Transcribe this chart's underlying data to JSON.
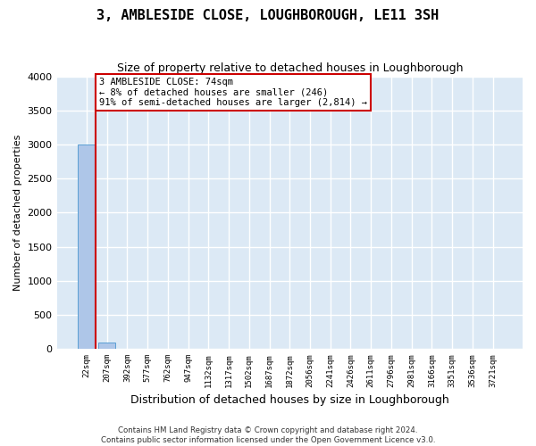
{
  "title": "3, AMBLESIDE CLOSE, LOUGHBOROUGH, LE11 3SH",
  "subtitle": "Size of property relative to detached houses in Loughborough",
  "xlabel": "Distribution of detached houses by size in Loughborough",
  "ylabel": "Number of detached properties",
  "bar_values": [
    3000,
    100,
    0,
    0,
    0,
    0,
    0,
    0,
    0,
    0,
    0,
    0,
    0,
    0,
    0,
    0,
    0,
    0,
    0,
    0,
    0
  ],
  "bar_labels": [
    "22sqm",
    "207sqm",
    "392sqm",
    "577sqm",
    "762sqm",
    "947sqm",
    "1132sqm",
    "1317sqm",
    "1502sqm",
    "1687sqm",
    "1872sqm",
    "2056sqm",
    "2241sqm",
    "2426sqm",
    "2611sqm",
    "2796sqm",
    "2981sqm",
    "3166sqm",
    "3351sqm",
    "3536sqm",
    "3721sqm"
  ],
  "bar_color": "#aec6e8",
  "bar_edge_color": "#5a9fd4",
  "background_color": "#dce9f5",
  "grid_color": "#ffffff",
  "ylim": [
    0,
    4000
  ],
  "yticks": [
    0,
    500,
    1000,
    1500,
    2000,
    2500,
    3000,
    3500,
    4000
  ],
  "annotation_text": "3 AMBLESIDE CLOSE: 74sqm\n← 8% of detached houses are smaller (246)\n91% of semi-detached houses are larger (2,814) →",
  "annotation_box_color": "#cc0000",
  "property_line_color": "#cc0000",
  "footer_line1": "Contains HM Land Registry data © Crown copyright and database right 2024.",
  "footer_line2": "Contains public sector information licensed under the Open Government Licence v3.0."
}
